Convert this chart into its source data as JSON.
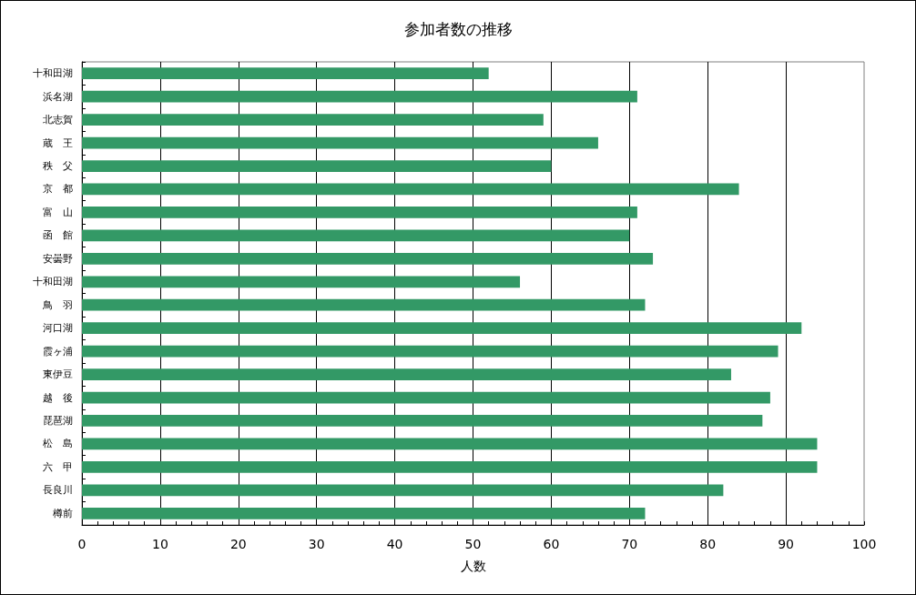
{
  "chart_data": {
    "type": "bar",
    "orientation": "horizontal",
    "title": "参加者数の推移",
    "xlabel": "人数",
    "categories": [
      "十和田湖",
      "浜名湖",
      "北志賀",
      "蔵　王",
      "秩　父",
      "京　都",
      "富　山",
      "函　館",
      "安曇野",
      "十和田湖",
      "鳥　羽",
      "河口湖",
      "霞ヶ浦",
      "東伊豆",
      "越　後",
      "琵琶湖",
      "松　島",
      "六　甲",
      "長良川",
      "樽前"
    ],
    "values": [
      52,
      71,
      59,
      66,
      60,
      84,
      71,
      70,
      73,
      56,
      72,
      92,
      89,
      83,
      88,
      87,
      94,
      94,
      82,
      72
    ],
    "color": "#339966",
    "xlim": [
      0,
      100
    ],
    "xticks": [
      0,
      {
        "value": 2,
        "label": null
      },
      {
        "value": 4,
        "label": null
      },
      {
        "value": 6,
        "label": null
      },
      {
        "value": 8,
        "label": null
      },
      10,
      {
        "value": 12,
        "label": null
      },
      {
        "value": 14,
        "label": null
      },
      {
        "value": 16,
        "label": null
      },
      {
        "value": 18,
        "label": null
      },
      20,
      {
        "value": 22,
        "label": null
      },
      {
        "value": 24,
        "label": null
      },
      {
        "value": 26,
        "label": null
      },
      {
        "value": 28,
        "label": null
      },
      30,
      {
        "value": 32,
        "label": null
      },
      {
        "value": 34,
        "label": null
      },
      {
        "value": 36,
        "label": null
      },
      {
        "value": 38,
        "label": null
      },
      40,
      {
        "value": 42,
        "label": null
      },
      {
        "value": 44,
        "label": null
      },
      {
        "value": 46,
        "label": null
      },
      {
        "value": 48,
        "label": null
      },
      50,
      {
        "value": 52,
        "label": null
      },
      {
        "value": 54,
        "label": null
      },
      {
        "value": 56,
        "label": null
      },
      {
        "value": 58,
        "label": null
      },
      60,
      {
        "value": 62,
        "label": null
      },
      {
        "value": 64,
        "label": null
      },
      {
        "value": 66,
        "label": null
      },
      {
        "value": 68,
        "label": null
      },
      70,
      {
        "value": 72,
        "label": null
      },
      {
        "value": 74,
        "label": null
      },
      {
        "value": 76,
        "label": null
      },
      {
        "value": 78,
        "label": null
      },
      80,
      {
        "value": 82,
        "label": null
      },
      {
        "value": 84,
        "label": null
      },
      {
        "value": 86,
        "label": null
      },
      {
        "value": 88,
        "label": null
      },
      90,
      {
        "value": 92,
        "label": null
      },
      {
        "value": 94,
        "label": null
      },
      {
        "value": 96,
        "label": null
      },
      {
        "value": 98,
        "label": null
      },
      100
    ],
    "grid": "x"
  }
}
